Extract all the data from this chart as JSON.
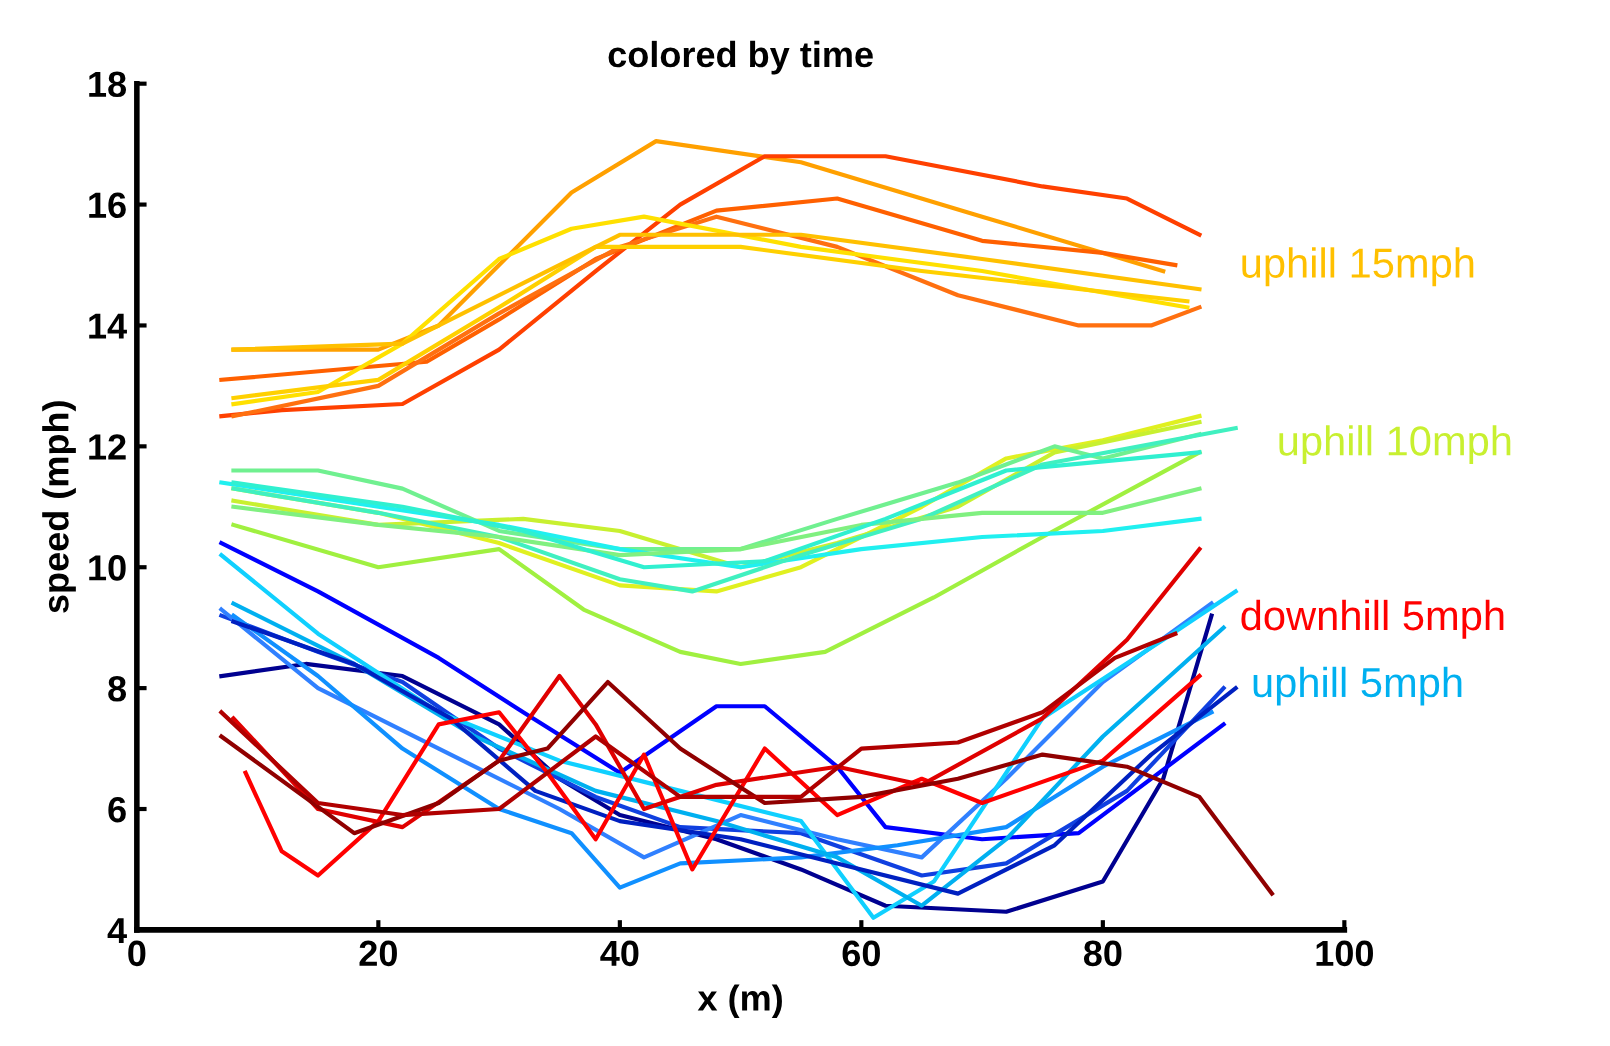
{
  "chart_data": {
    "type": "line",
    "title": "colored by time",
    "xlabel": "x (m)",
    "ylabel": "speed (mph)",
    "xlim": [
      0,
      100
    ],
    "xticks": [
      0,
      20,
      40,
      60,
      80,
      100
    ],
    "ylim": [
      4,
      18
    ],
    "yticks": [
      4,
      6,
      8,
      10,
      12,
      14,
      16,
      18
    ],
    "grid": false,
    "legend": false,
    "marker": "none",
    "line_style": "solid",
    "series": [
      {
        "color": "#ffa000",
        "x": [
          8,
          20,
          25,
          30,
          36,
          43,
          55,
          70,
          85
        ],
        "values": [
          13.6,
          13.6,
          14.0,
          15.0,
          16.2,
          17.05,
          16.7,
          15.8,
          14.9
        ]
      },
      {
        "color": "#ff4000",
        "x": [
          7,
          12,
          22,
          30,
          38,
          45,
          52,
          62,
          75,
          82,
          88
        ],
        "values": [
          12.5,
          12.6,
          12.7,
          13.6,
          14.9,
          16.0,
          16.8,
          16.8,
          16.3,
          16.1,
          15.5
        ]
      },
      {
        "color": "#ff6000",
        "x": [
          7,
          24,
          30,
          38,
          48,
          58,
          70,
          80,
          86
        ],
        "values": [
          13.1,
          13.4,
          14.1,
          15.1,
          15.9,
          16.1,
          15.4,
          15.2,
          15.0
        ]
      },
      {
        "color": "#ff7010",
        "x": [
          8,
          20,
          30,
          40,
          48,
          58,
          68,
          78,
          84,
          88
        ],
        "values": [
          12.5,
          13.0,
          14.2,
          15.3,
          15.8,
          15.3,
          14.5,
          14.0,
          14.0,
          14.3
        ]
      },
      {
        "color": "#ffe000",
        "x": [
          8,
          15,
          22,
          30,
          36,
          42,
          55,
          70,
          87
        ],
        "values": [
          12.7,
          12.9,
          13.7,
          15.1,
          15.6,
          15.8,
          15.3,
          14.9,
          14.3
        ]
      },
      {
        "color": "#ffd000",
        "x": [
          8,
          20,
          30,
          38,
          50,
          65,
          87
        ],
        "values": [
          12.8,
          13.1,
          14.3,
          15.3,
          15.3,
          14.9,
          14.4
        ]
      },
      {
        "color": "#ffc000",
        "x": [
          8,
          22,
          32,
          40,
          55,
          70,
          88
        ],
        "values": [
          13.6,
          13.7,
          14.7,
          15.5,
          15.5,
          15.1,
          14.6
        ]
      },
      {
        "color": "#e0f020",
        "x": [
          8,
          20,
          30,
          40,
          48,
          55,
          65,
          72,
          80,
          88
        ],
        "values": [
          11.3,
          10.9,
          10.4,
          9.7,
          9.6,
          10.0,
          11.0,
          11.8,
          12.1,
          12.5
        ]
      },
      {
        "color": "#a0f040",
        "x": [
          8,
          20,
          30,
          37,
          45,
          50,
          57,
          66,
          75,
          88
        ],
        "values": [
          10.7,
          10.0,
          10.3,
          9.3,
          8.6,
          8.4,
          8.6,
          9.5,
          10.5,
          11.9
        ]
      },
      {
        "color": "#c8f030",
        "x": [
          8,
          20,
          32,
          40,
          50,
          58,
          68,
          76,
          88
        ],
        "values": [
          11.1,
          10.7,
          10.8,
          10.6,
          10.0,
          10.4,
          11.0,
          11.9,
          12.4
        ]
      },
      {
        "color": "#70f090",
        "x": [
          8,
          15,
          22,
          30,
          40,
          50,
          58,
          68,
          76,
          80,
          88
        ],
        "values": [
          11.6,
          11.6,
          11.3,
          10.6,
          10.3,
          10.3,
          10.8,
          11.4,
          12.0,
          11.8,
          12.2
        ]
      },
      {
        "color": "#20f0f0",
        "x": [
          7,
          20,
          30,
          40,
          50,
          60,
          70,
          80,
          88
        ],
        "values": [
          11.4,
          11.0,
          10.7,
          10.3,
          10.0,
          10.3,
          10.5,
          10.6,
          10.8
        ]
      },
      {
        "color": "#40f0c0",
        "x": [
          8,
          20,
          30,
          40,
          46,
          55,
          65,
          75,
          91
        ],
        "values": [
          11.3,
          10.9,
          10.5,
          9.8,
          9.6,
          10.2,
          10.8,
          11.7,
          12.3
        ]
      },
      {
        "color": "#80f080",
        "x": [
          8,
          20,
          30,
          40,
          50,
          60,
          70,
          80,
          88
        ],
        "values": [
          11.0,
          10.7,
          10.5,
          10.2,
          10.3,
          10.7,
          10.9,
          10.9,
          11.3
        ]
      },
      {
        "color": "#30f0d0",
        "x": [
          8,
          22,
          32,
          42,
          52,
          62,
          72,
          88
        ],
        "values": [
          11.4,
          11.0,
          10.6,
          10.0,
          10.1,
          10.8,
          11.6,
          11.9
        ]
      },
      {
        "color": "#000090",
        "x": [
          7,
          14,
          22,
          30,
          35,
          40,
          48,
          55,
          62,
          72,
          80,
          85,
          89
        ],
        "values": [
          8.2,
          8.4,
          8.2,
          7.4,
          6.5,
          5.9,
          5.5,
          5.0,
          4.4,
          4.3,
          4.8,
          6.5,
          9.2
        ]
      },
      {
        "color": "#0000ff",
        "x": [
          7,
          15,
          25,
          32,
          40,
          48,
          52,
          58,
          62,
          70,
          78,
          90
        ],
        "values": [
          10.4,
          9.6,
          8.5,
          7.6,
          6.6,
          7.7,
          7.7,
          6.7,
          5.7,
          5.5,
          5.6,
          7.4
        ]
      },
      {
        "color": "#1040e0",
        "x": [
          7,
          15,
          22,
          30,
          38,
          45,
          55,
          65,
          72,
          82,
          90
        ],
        "values": [
          9.2,
          8.6,
          8.1,
          7.0,
          6.2,
          5.7,
          5.6,
          4.9,
          5.1,
          6.3,
          8.0
        ]
      },
      {
        "color": "#3080ff",
        "x": [
          7,
          15,
          25,
          35,
          42,
          50,
          58,
          65,
          72,
          80,
          89
        ],
        "values": [
          9.3,
          8.0,
          7.0,
          6.0,
          5.2,
          5.9,
          5.5,
          5.2,
          6.5,
          8.1,
          9.4
        ]
      },
      {
        "color": "#1090ff",
        "x": [
          8,
          15,
          22,
          30,
          36,
          40,
          45,
          55,
          63,
          72,
          80,
          89
        ],
        "values": [
          9.2,
          8.2,
          7.0,
          6.0,
          5.6,
          4.7,
          5.1,
          5.2,
          5.4,
          5.7,
          6.7,
          7.6
        ]
      },
      {
        "color": "#10d0ff",
        "x": [
          7,
          15,
          25,
          35,
          45,
          55,
          61,
          66,
          75,
          85,
          91
        ],
        "values": [
          10.2,
          8.9,
          7.6,
          6.8,
          6.3,
          5.8,
          4.2,
          4.8,
          7.5,
          8.8,
          9.6
        ]
      },
      {
        "color": "#00b0f0",
        "x": [
          8,
          18,
          28,
          38,
          48,
          58,
          65,
          72,
          80,
          90
        ],
        "values": [
          9.4,
          8.4,
          7.2,
          6.3,
          5.8,
          5.2,
          4.4,
          5.5,
          7.2,
          9.0
        ]
      },
      {
        "color": "#0020c0",
        "x": [
          8,
          18,
          26,
          33,
          40,
          50,
          58,
          68,
          76,
          84,
          91
        ],
        "values": [
          9.1,
          8.4,
          7.5,
          6.3,
          5.8,
          5.5,
          5.1,
          4.6,
          5.4,
          6.9,
          8.0
        ]
      },
      {
        "color": "#ff0000",
        "x": [
          9,
          12,
          15,
          20,
          25,
          30,
          34,
          38,
          42,
          46,
          52,
          58,
          65,
          70,
          80,
          88
        ],
        "values": [
          6.6,
          5.3,
          4.9,
          5.8,
          7.4,
          7.6,
          6.6,
          5.5,
          6.9,
          5.0,
          7.0,
          5.9,
          6.5,
          6.1,
          6.8,
          8.2
        ]
      },
      {
        "color": "#e00000",
        "x": [
          8,
          15,
          22,
          30,
          35,
          38,
          42,
          48,
          58,
          65,
          75,
          82,
          88
        ],
        "values": [
          7.5,
          6.0,
          5.7,
          6.8,
          8.2,
          7.4,
          6.0,
          6.4,
          6.7,
          6.4,
          7.5,
          8.8,
          10.3
        ]
      },
      {
        "color": "#900000",
        "x": [
          7,
          18,
          25,
          30,
          34,
          39,
          45,
          52,
          60,
          68,
          75,
          82,
          88,
          94
        ],
        "values": [
          7.2,
          5.6,
          6.1,
          6.8,
          7.0,
          8.1,
          7.0,
          6.1,
          6.2,
          6.5,
          6.9,
          6.7,
          6.2,
          4.6
        ]
      },
      {
        "color": "#b00000",
        "x": [
          7,
          15,
          22,
          30,
          38,
          45,
          55,
          60,
          68,
          75,
          81,
          86
        ],
        "values": [
          7.6,
          6.1,
          5.9,
          6.0,
          7.2,
          6.2,
          6.2,
          7.0,
          7.1,
          7.6,
          8.5,
          8.9
        ]
      }
    ],
    "annotations": [
      "uphill 15mph",
      "uphill 10mph",
      "downhill 5mph",
      "uphill 5mph"
    ]
  }
}
